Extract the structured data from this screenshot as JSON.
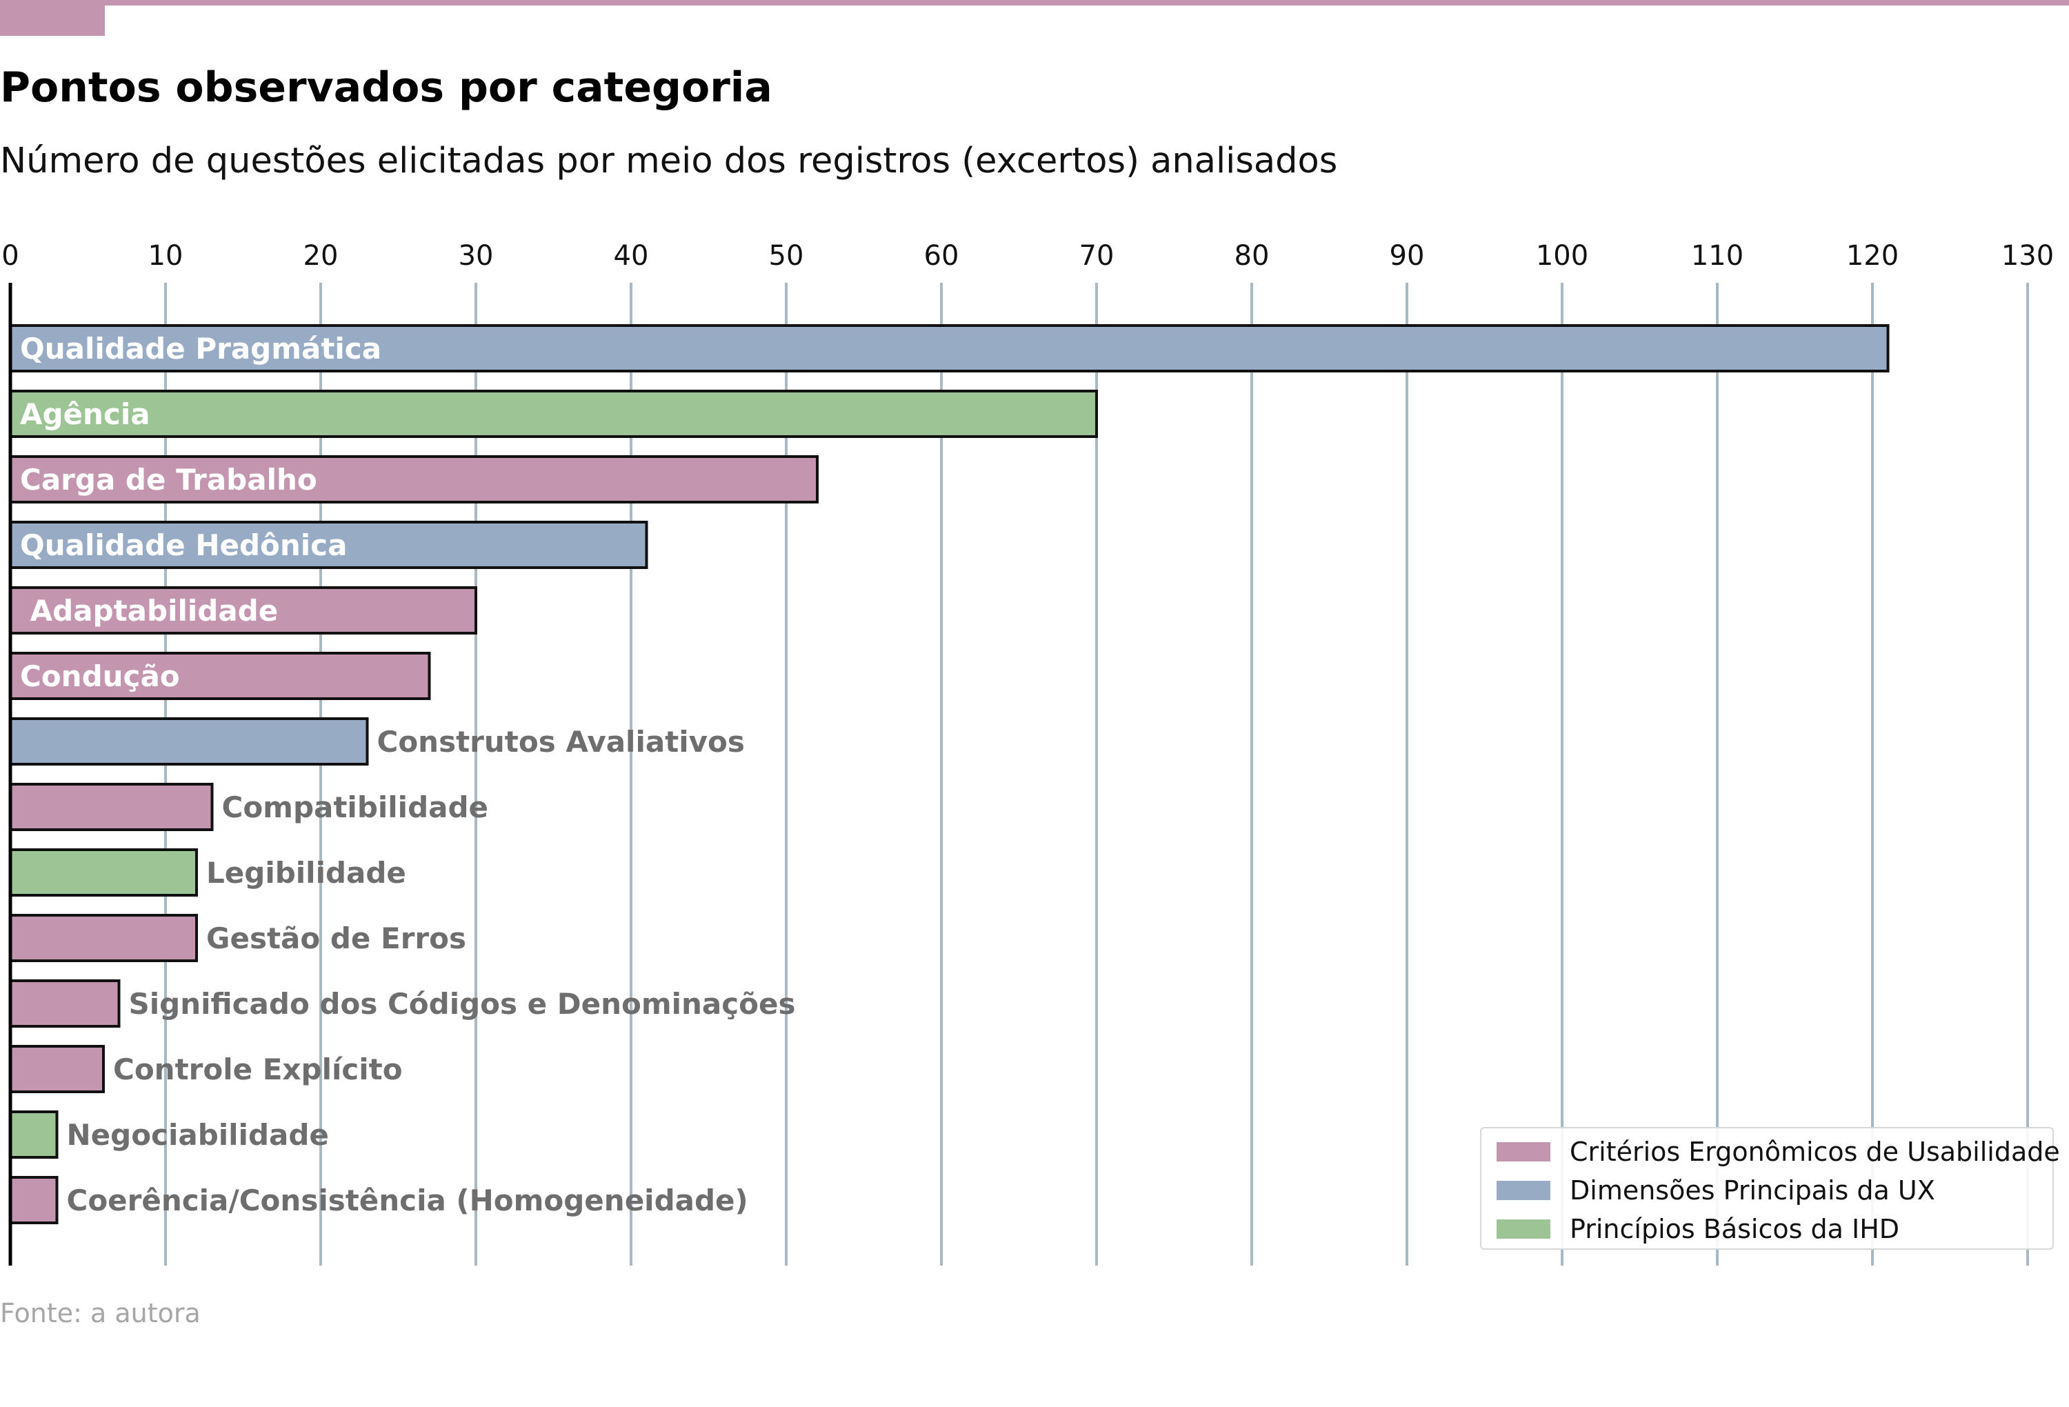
{
  "header": {
    "title": "Pontos observados por categoria",
    "subtitle": "Número de questões elicitadas por meio dos registros (excertos) analisados",
    "accent_color": "#c495ae"
  },
  "footer": {
    "source": "Fonte: a autora"
  },
  "chart_data": {
    "type": "bar",
    "orientation": "horizontal",
    "title": "Pontos observados por categoria",
    "subtitle": "Número de questões elicitadas por meio dos registros (excertos) analisados",
    "xlim": [
      0,
      130
    ],
    "xticks": [
      0,
      10,
      20,
      30,
      40,
      50,
      60,
      70,
      80,
      90,
      100,
      110,
      120,
      130
    ],
    "x_axis_position": "top",
    "grid": "vertical",
    "legend_position": "bottom-right",
    "categories": [
      "Qualidade Pragmática",
      "Agência",
      "Carga de Trabalho",
      "Qualidade Hedônica",
      " Adaptabilidade",
      "Condução",
      "Construtos Avaliativos",
      "Compatibilidade",
      "Legibilidade",
      "Gestão de Erros",
      "Significado dos Códigos e Denominações",
      "Controle Explícito",
      "Negociabilidade",
      "Coerência/Consistência (Homogeneidade)"
    ],
    "values": [
      121,
      70,
      52,
      41,
      30,
      27,
      23,
      13,
      12,
      12,
      7,
      6,
      3,
      3
    ],
    "groups": [
      "ux",
      "ihd",
      "ergo",
      "ux",
      "ergo",
      "ergo",
      "ux",
      "ergo",
      "ihd",
      "ergo",
      "ergo",
      "ergo",
      "ihd",
      "ergo"
    ],
    "label_inside": [
      true,
      true,
      true,
      true,
      true,
      true,
      false,
      false,
      false,
      false,
      false,
      false,
      false,
      false
    ],
    "legend": [
      {
        "key": "ergo",
        "name": "Critérios Ergonômicos de Usabilidade",
        "color": "#c495ae"
      },
      {
        "key": "ux",
        "name": "Dimensões Principais da UX",
        "color": "#97acc4"
      },
      {
        "key": "ihd",
        "name": "Princípios Básicos da IHD",
        "color": "#9dc494"
      }
    ],
    "colors": {
      "grid": "#a9b9c4",
      "inside_label": "#ffffff",
      "outside_label": "#6e6e6e",
      "bar_edge": "#111111"
    }
  }
}
